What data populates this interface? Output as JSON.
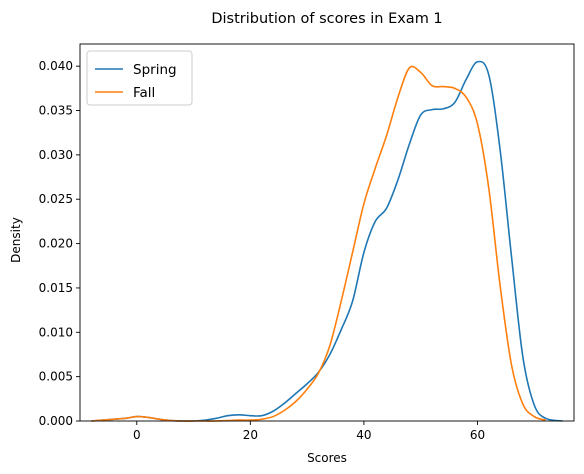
{
  "chart_data": {
    "type": "line",
    "title": "Distribution of scores in Exam 1",
    "xlabel": "Scores",
    "ylabel": "Density",
    "xlim": [
      -10,
      77
    ],
    "ylim": [
      0,
      0.0425
    ],
    "xticks": [
      0,
      20,
      40,
      60
    ],
    "yticks": [
      0.0,
      0.005,
      0.01,
      0.015,
      0.02,
      0.025,
      0.03,
      0.035,
      0.04
    ],
    "ytick_labels": [
      "0.000",
      "0.005",
      "0.010",
      "0.015",
      "0.020",
      "0.025",
      "0.030",
      "0.035",
      "0.040"
    ],
    "grid": false,
    "legend": "top-left",
    "series": [
      {
        "name": "Spring",
        "color": "#1f77b4",
        "x": [
          -8,
          -4,
          -2,
          0,
          2,
          4,
          6,
          8,
          10,
          12,
          14,
          16,
          18,
          20,
          22,
          24,
          26,
          28,
          30,
          32,
          34,
          36,
          38,
          40,
          42,
          44,
          46,
          48,
          50,
          52,
          54,
          56,
          58,
          60,
          62,
          64,
          66,
          68,
          70,
          72,
          75
        ],
        "y": [
          0.0,
          0.0002,
          0.0003,
          0.0005,
          0.0004,
          0.0002,
          5e-05,
          0.0,
          0.0,
          0.0001,
          0.0003,
          0.0006,
          0.0007,
          0.0006,
          0.0006,
          0.0011,
          0.002,
          0.0031,
          0.0042,
          0.0055,
          0.0075,
          0.0103,
          0.0135,
          0.019,
          0.0225,
          0.024,
          0.0272,
          0.0312,
          0.0345,
          0.0351,
          0.0352,
          0.0359,
          0.0385,
          0.0405,
          0.039,
          0.0305,
          0.0185,
          0.0072,
          0.0018,
          0.0003,
          0.0
        ]
      },
      {
        "name": "Fall",
        "color": "#ff7f0e",
        "x": [
          -8,
          -4,
          -2,
          0,
          2,
          4,
          6,
          8,
          10,
          12,
          14,
          16,
          18,
          20,
          22,
          24,
          26,
          28,
          30,
          32,
          34,
          36,
          38,
          40,
          42,
          44,
          46,
          48,
          50,
          52,
          54,
          56,
          58,
          60,
          62,
          64,
          66,
          68,
          70,
          72
        ],
        "y": [
          0.0,
          0.0002,
          0.0003,
          0.0005,
          0.0004,
          0.0002,
          5e-05,
          0.0,
          0.0,
          0.0,
          0.0,
          5e-05,
          0.0001,
          0.0001,
          0.0002,
          0.0005,
          0.0012,
          0.0022,
          0.0036,
          0.0054,
          0.0085,
          0.0135,
          0.019,
          0.0245,
          0.0285,
          0.0322,
          0.0365,
          0.0398,
          0.0393,
          0.0378,
          0.0377,
          0.0375,
          0.0365,
          0.0335,
          0.0262,
          0.0152,
          0.0063,
          0.0019,
          0.0005,
          0.0001
        ]
      }
    ]
  }
}
